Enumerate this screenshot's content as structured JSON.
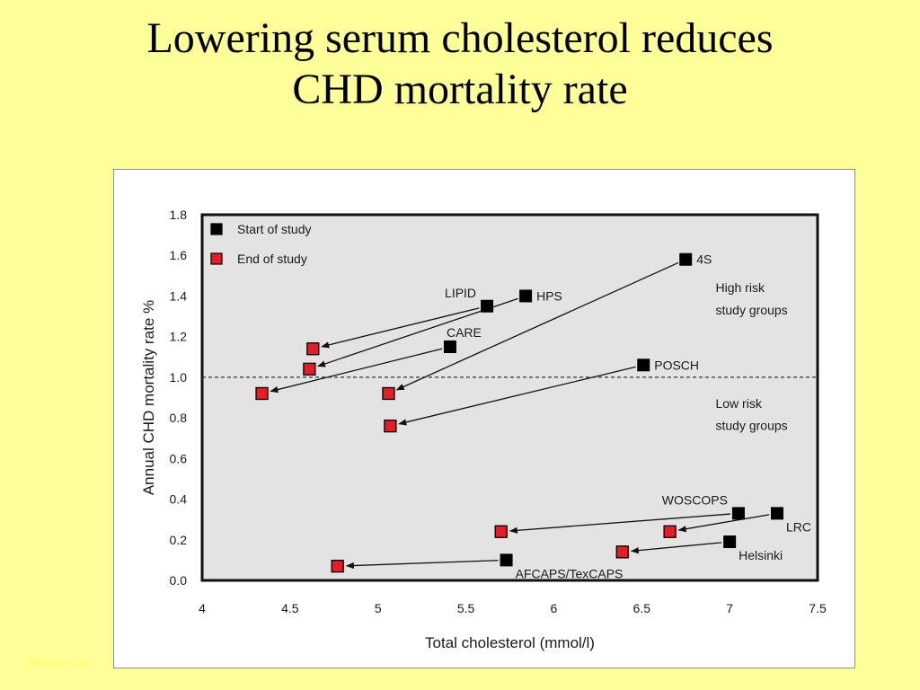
{
  "slide": {
    "title_line1": "Lowering serum cholesterol reduces",
    "title_line2": "CHD mortality rate",
    "footer_link": "References"
  },
  "colors": {
    "background": "#ffff99",
    "plot_area": "#e3e3e3",
    "start_marker": "#000000",
    "end_marker": "#e41e26"
  },
  "chart_data": {
    "type": "scatter",
    "xlabel": "Total cholesterol (mmol/l)",
    "ylabel": "Annual CHD mortality rate %",
    "xlim": [
      4,
      7.5
    ],
    "ylim": [
      0,
      1.8
    ],
    "xticks": [
      "4",
      "4.5",
      "5",
      "5.5",
      "6",
      "6.5",
      "7",
      "7.5"
    ],
    "yticks": [
      "0.0",
      "0.2",
      "0.4",
      "0.6",
      "0.8",
      "1.0",
      "1.2",
      "1.4",
      "1.6",
      "1.8"
    ],
    "grid": false,
    "legend_position": "top-left",
    "legend": [
      {
        "name": "Start of study",
        "color": "#000000"
      },
      {
        "name": "End of study",
        "color": "#e41e26"
      }
    ],
    "reference_line": {
      "y": 1.0,
      "style": "dashed"
    },
    "annotations": [
      {
        "text": "High risk",
        "x": 6.92,
        "y": 1.42
      },
      {
        "text": "study groups",
        "x": 6.92,
        "y": 1.31
      },
      {
        "text": "Low risk",
        "x": 6.92,
        "y": 0.85
      },
      {
        "text": "study groups",
        "x": 6.92,
        "y": 0.74
      }
    ],
    "studies": [
      {
        "name": "4S",
        "start": [
          6.75,
          1.58
        ],
        "end": [
          5.06,
          0.92
        ],
        "label_pos": "right"
      },
      {
        "name": "HPS",
        "start": [
          5.84,
          1.4
        ],
        "end": [
          4.61,
          1.04
        ],
        "label_pos": "right"
      },
      {
        "name": "LIPID",
        "start": [
          5.62,
          1.35
        ],
        "end": [
          4.63,
          1.14
        ],
        "label_pos": "above-left"
      },
      {
        "name": "CARE",
        "start": [
          5.41,
          1.15
        ],
        "end": [
          4.34,
          0.92
        ],
        "label_pos": "above-right"
      },
      {
        "name": "POSCH",
        "start": [
          6.51,
          1.06
        ],
        "end": [
          5.07,
          0.76
        ],
        "label_pos": "right"
      },
      {
        "name": "WOSCOPS",
        "start": [
          7.05,
          0.33
        ],
        "end": [
          5.7,
          0.24
        ],
        "label_pos": "above-left"
      },
      {
        "name": "LRC",
        "start": [
          7.27,
          0.33
        ],
        "end": [
          6.66,
          0.24
        ],
        "label_pos": "below-right"
      },
      {
        "name": "Helsinki",
        "start": [
          7.0,
          0.19
        ],
        "end": [
          6.39,
          0.14
        ],
        "label_pos": "below-right"
      },
      {
        "name": "AFCAPS/TexCAPS",
        "start": [
          5.73,
          0.1
        ],
        "end": [
          4.77,
          0.07
        ],
        "label_pos": "below-right"
      }
    ]
  }
}
